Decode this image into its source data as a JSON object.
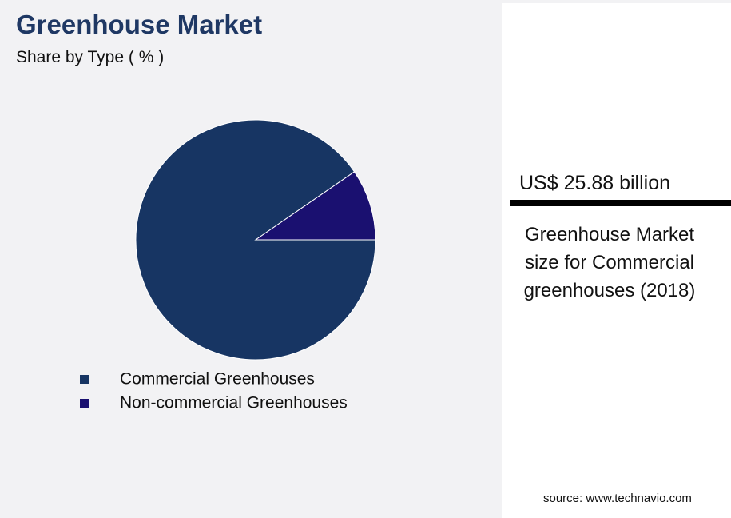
{
  "chart_data": {
    "type": "pie",
    "title": "Greenhouse Market",
    "subtitle": "Share by Type ( % )",
    "categories": [
      "Commercial Greenhouses",
      "Non-commercial Greenhouses"
    ],
    "values": [
      90.4,
      9.6
    ],
    "colors": [
      "#173563",
      "#1a1070"
    ]
  },
  "panel": {
    "value": "US$ 25.88 billion",
    "caption": "Greenhouse Market size for Commercial greenhouses (2018)",
    "source": "source: www.technavio.com"
  }
}
